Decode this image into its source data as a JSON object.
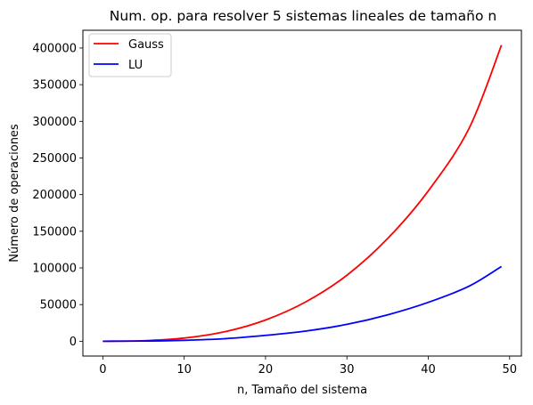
{
  "chart_data": {
    "type": "line",
    "title": "Num. op. para resolver 5 sistemas lineales de tamaño n",
    "xlabel": "n, Tamaño del sistema",
    "ylabel": "Número de operaciones",
    "xlim": [
      -2.45,
      51.45
    ],
    "ylim": [
      -20200,
      424200
    ],
    "xticks": [
      0,
      10,
      20,
      30,
      40,
      50
    ],
    "xtick_labels": [
      "0",
      "10",
      "20",
      "30",
      "40",
      "50"
    ],
    "yticks": [
      0,
      50000,
      100000,
      150000,
      200000,
      250000,
      300000,
      350000,
      400000
    ],
    "ytick_labels": [
      "0",
      "50000",
      "100000",
      "150000",
      "200000",
      "250000",
      "300000",
      "350000",
      "400000"
    ],
    "grid": false,
    "legend_position": "top-left",
    "x": [
      0,
      5,
      10,
      15,
      20,
      25,
      30,
      35,
      40,
      45,
      49
    ],
    "series": [
      {
        "name": "Gauss",
        "color": "#ff0000",
        "values": [
          0,
          760,
          4300,
          13000,
          29000,
          54000,
          90000,
          140000,
          205000,
          290000,
          404000
        ]
      },
      {
        "name": "LU",
        "color": "#0000ff",
        "values": [
          0,
          260,
          1300,
          3500,
          8000,
          14000,
          23000,
          36000,
          53000,
          75000,
          102000
        ]
      }
    ]
  }
}
